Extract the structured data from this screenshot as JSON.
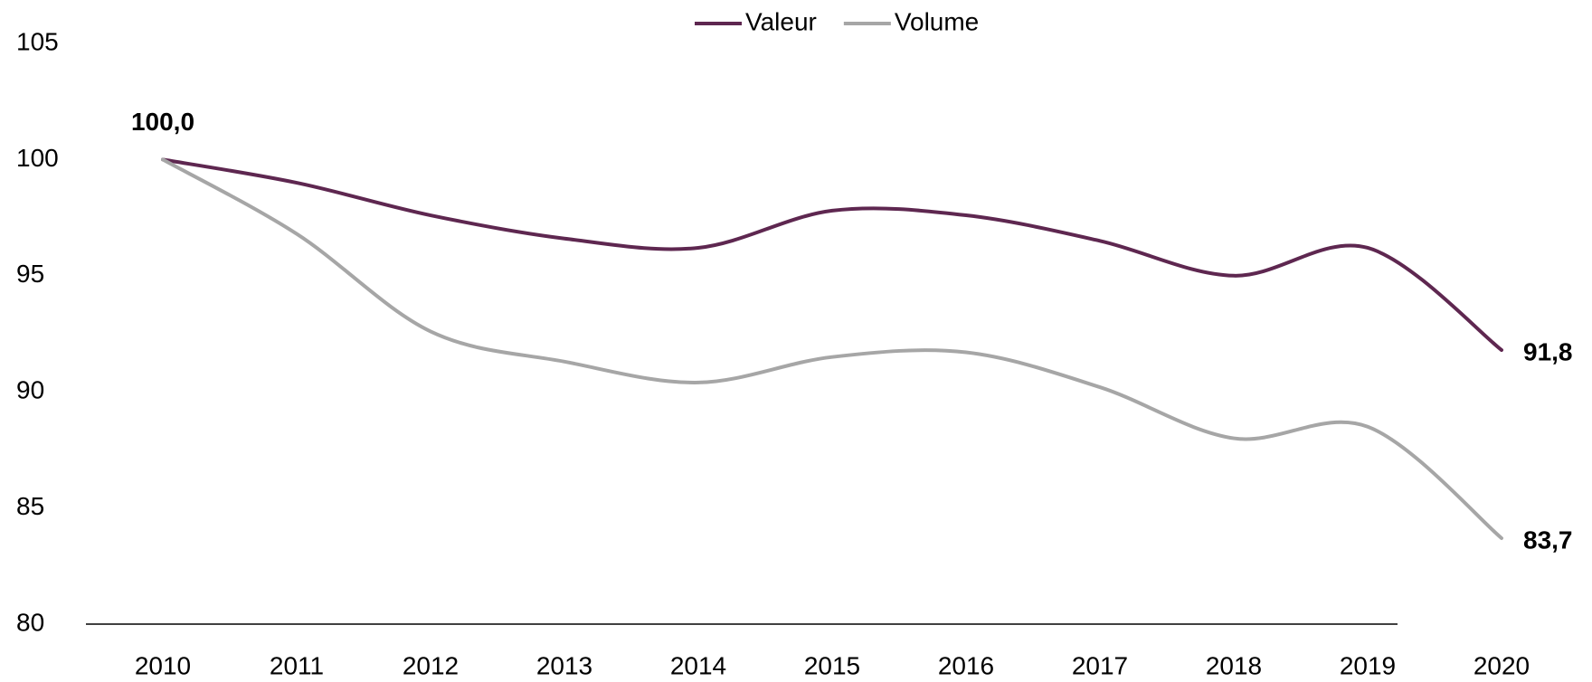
{
  "chart_data": {
    "type": "line",
    "categories": [
      "2010",
      "2011",
      "2012",
      "2013",
      "2014",
      "2015",
      "2016",
      "2017",
      "2018",
      "2019",
      "2020"
    ],
    "series": [
      {
        "name": "Valeur",
        "color": "#5e2750",
        "values": [
          100.0,
          99.0,
          97.6,
          96.6,
          96.2,
          97.8,
          97.6,
          96.5,
          95.0,
          96.2,
          91.8
        ],
        "value_labels": [
          "100,0",
          null,
          null,
          null,
          null,
          null,
          null,
          null,
          null,
          null,
          "91,8"
        ]
      },
      {
        "name": "Volume",
        "color": "#a6a6a6",
        "values": [
          100.0,
          96.8,
          92.6,
          91.3,
          90.4,
          91.5,
          91.7,
          90.2,
          88.0,
          88.5,
          83.7
        ],
        "value_labels": [
          null,
          null,
          null,
          null,
          null,
          null,
          null,
          null,
          null,
          null,
          "83,7"
        ]
      }
    ],
    "ylim": [
      80,
      105
    ],
    "yticks": [
      80,
      85,
      90,
      95,
      100,
      105
    ],
    "grid": false,
    "legend": "top",
    "smooth": true
  }
}
